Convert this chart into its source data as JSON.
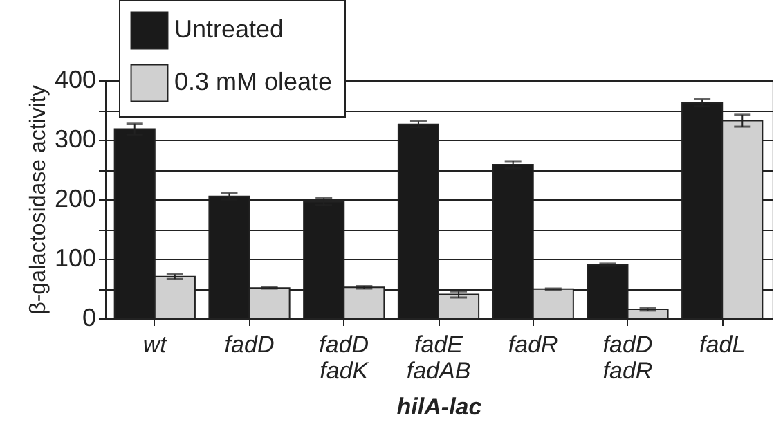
{
  "chart_data": {
    "type": "bar",
    "xlabel": "hilA-lac",
    "ylabel": "β-galactosidase activity",
    "categories": [
      "wt",
      "fadD",
      "fadD\nfadK",
      "fadE\nfadAB",
      "fadR",
      "fadD\nfadR",
      "fadL"
    ],
    "series": [
      {
        "name": "Untreated",
        "color": "#1a1a1a",
        "values": [
          318,
          205,
          196,
          326,
          258,
          90,
          362
        ],
        "errors": [
          9,
          5,
          6,
          5,
          6,
          2,
          6
        ]
      },
      {
        "name": "0.3 mM oleate",
        "color": "#d0d0d0",
        "values": [
          70,
          51,
          52,
          40,
          49,
          15,
          332
        ],
        "errors": [
          4,
          1,
          2,
          5,
          1,
          2,
          10
        ]
      }
    ],
    "ylim": [
      0,
      400
    ],
    "yticks": [
      0,
      {
        "value": 50,
        "label": null
      },
      100,
      {
        "value": 150,
        "label": null
      },
      200,
      {
        "value": 250,
        "label": null
      },
      300,
      {
        "value": 350,
        "label": null
      },
      400
    ],
    "grid": "y",
    "legend": "top left"
  }
}
